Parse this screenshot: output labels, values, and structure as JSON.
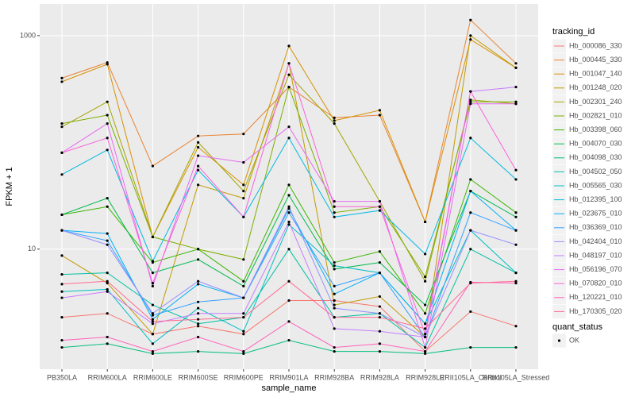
{
  "chart_data": {
    "type": "line",
    "x_label": "sample_name",
    "y_label": "FPKM + 1",
    "log_y": true,
    "grid": true,
    "legend_title": "tracking_id",
    "legend_position": "right",
    "point_legend": {
      "title": "quant_status",
      "items": [
        "OK"
      ]
    },
    "ylim": [
      0.75,
      1980
    ],
    "yticks": [
      10,
      1000
    ],
    "categories": [
      "PB350LA",
      "RRIM600LA",
      "RRIM600LE",
      "RRIM600SE",
      "RRIM600PE",
      "RRIM901LA",
      "RRIM928BA",
      "RRIM928LA",
      "RRIM928LE",
      "RRII105LA_Control",
      "RRII105LA_Stressed"
    ],
    "series": [
      {
        "name": "Hb_000086_330",
        "color": "#F8766D",
        "values": [
          2.3,
          2.5,
          1.6,
          1.9,
          1.6,
          3.3,
          3.3,
          2.9,
          1.1,
          2.6,
          1.9
        ]
      },
      {
        "name": "Hb_000445_330",
        "color": "#EA8331",
        "values": [
          400,
          560,
          60,
          115,
          120,
          330,
          170,
          180,
          18,
          1400,
          550
        ]
      },
      {
        "name": "Hb_001047_140",
        "color": "#D89000",
        "values": [
          370,
          540,
          13,
          90,
          40,
          800,
          160,
          200,
          18,
          920,
          500
        ]
      },
      {
        "name": "Hb_001248_020",
        "color": "#C09B00",
        "values": [
          8.7,
          4.8,
          1.6,
          40,
          30,
          550,
          3,
          3.6,
          1.5,
          1000,
          500
        ]
      },
      {
        "name": "Hb_002301_240",
        "color": "#A3A500",
        "values": [
          140,
          240,
          13,
          100,
          35,
          430,
          150,
          28,
          5,
          250,
          230
        ]
      },
      {
        "name": "Hb_002821_010",
        "color": "#7CAE00",
        "values": [
          150,
          180,
          13,
          10,
          8,
          330,
          22,
          25,
          5.5,
          240,
          240
        ]
      },
      {
        "name": "Hb_003398_060",
        "color": "#39B600",
        "values": [
          21,
          25,
          7.5,
          10,
          5,
          40,
          7.5,
          9.5,
          2.5,
          45,
          22
        ]
      },
      {
        "name": "Hb_004070_030",
        "color": "#00BB4E",
        "values": [
          21,
          30,
          6,
          8,
          4.5,
          32,
          6.5,
          7.5,
          3,
          35,
          20
        ]
      },
      {
        "name": "Hb_004098_030",
        "color": "#00BF7D",
        "values": [
          1.2,
          1.3,
          1.05,
          1.1,
          1.05,
          1.4,
          1.1,
          1.1,
          1.05,
          1.2,
          1.2
        ]
      },
      {
        "name": "Hb_004502_050",
        "color": "#00C1A3",
        "values": [
          5.8,
          6,
          3,
          2,
          2.3,
          10,
          2.3,
          2.5,
          1.2,
          10,
          6
        ]
      },
      {
        "name": "Hb_005565_030",
        "color": "#00BFC4",
        "values": [
          4,
          4.2,
          1.3,
          2.8,
          1.7,
          17,
          7,
          6,
          2,
          15,
          6
        ]
      },
      {
        "name": "Hb_012395_100",
        "color": "#00BAE0",
        "values": [
          50,
          85,
          7.7,
          55,
          20,
          110,
          20,
          23,
          9,
          110,
          45
        ]
      },
      {
        "name": "Hb_023675_010",
        "color": "#00B0F6",
        "values": [
          15,
          14,
          2.2,
          4.7,
          3.5,
          24,
          3.8,
          6,
          2,
          35,
          15
        ]
      },
      {
        "name": "Hb_036369_010",
        "color": "#35A2FF",
        "values": [
          15,
          12,
          2.4,
          3.2,
          3.5,
          22,
          4.5,
          6,
          1.5,
          22,
          15
        ]
      },
      {
        "name": "Hb_042404_010",
        "color": "#9590FF",
        "values": [
          15,
          11,
          2.5,
          5,
          3.5,
          25,
          2.8,
          2.5,
          1.5,
          15,
          11
        ]
      },
      {
        "name": "Hb_048197_010",
        "color": "#C77CFF",
        "values": [
          3.5,
          4,
          2,
          2.5,
          2.5,
          18,
          1.8,
          1.7,
          1.5,
          300,
          330
        ]
      },
      {
        "name": "Hb_056196_070",
        "color": "#E76BF3",
        "values": [
          80,
          150,
          4.5,
          75,
          65,
          140,
          28,
          28,
          1.2,
          230,
          230
        ]
      },
      {
        "name": "Hb_070820_010",
        "color": "#FA62DB",
        "values": [
          80,
          110,
          4.8,
          60,
          20,
          550,
          25,
          25,
          1.6,
          300,
          55
        ]
      },
      {
        "name": "Hb_120221_010",
        "color": "#FF62BC",
        "values": [
          1.4,
          1.5,
          1.1,
          1.5,
          1.1,
          2.1,
          1.2,
          1.3,
          1.1,
          4.9,
          4.8
        ]
      },
      {
        "name": "Hb_170305_020",
        "color": "#FF6C91",
        "values": [
          4.7,
          5,
          2.1,
          2.2,
          2.3,
          5,
          2.3,
          2.3,
          1.8,
          4.8,
          5
        ]
      }
    ]
  }
}
